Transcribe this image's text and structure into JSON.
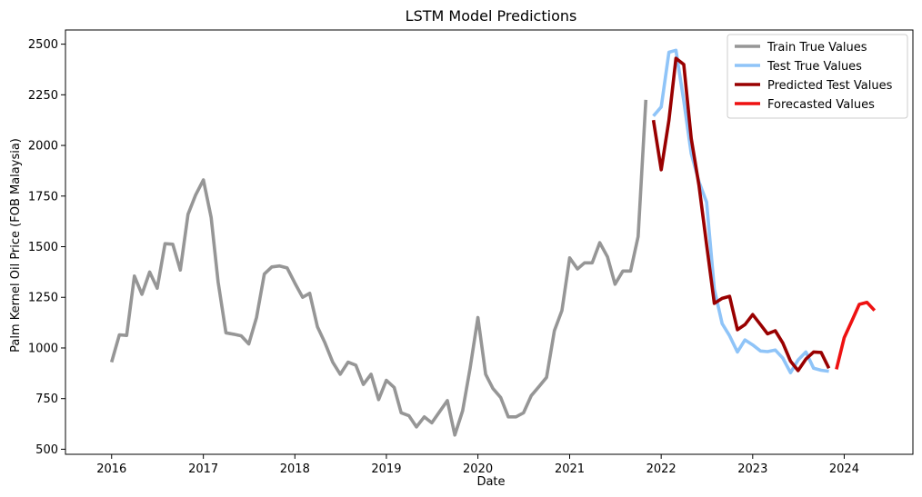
{
  "chart_data": {
    "type": "line",
    "title": "LSTM Model Predictions",
    "xlabel": "Date",
    "ylabel": "Palm Kernel Oil Price (FOB Malaysia)",
    "xlim": [
      "2015-07-01",
      "2024-10-01"
    ],
    "ylim": [
      475,
      2570
    ],
    "x_ticks": [
      "2016-01-01",
      "2017-01-01",
      "2018-01-01",
      "2019-01-01",
      "2020-01-01",
      "2021-01-01",
      "2022-01-01",
      "2023-01-01",
      "2024-01-01"
    ],
    "x_tick_labels": [
      "2016",
      "2017",
      "2018",
      "2019",
      "2020",
      "2021",
      "2022",
      "2023",
      "2024"
    ],
    "y_ticks": [
      500,
      750,
      1000,
      1250,
      1500,
      1750,
      2000,
      2250,
      2500
    ],
    "y_tick_labels": [
      "500",
      "750",
      "1000",
      "1250",
      "1500",
      "1750",
      "2000",
      "2250",
      "2500"
    ],
    "legend_position": "top-right",
    "grid": false,
    "series": [
      {
        "name": "Train True Values",
        "color": "#969696",
        "points": [
          [
            "2016-01-01",
            930
          ],
          [
            "2016-02-01",
            1065
          ],
          [
            "2016-03-01",
            1062
          ],
          [
            "2016-04-01",
            1355
          ],
          [
            "2016-05-01",
            1265
          ],
          [
            "2016-06-01",
            1375
          ],
          [
            "2016-07-01",
            1295
          ],
          [
            "2016-08-01",
            1515
          ],
          [
            "2016-09-01",
            1512
          ],
          [
            "2016-10-01",
            1385
          ],
          [
            "2016-11-01",
            1660
          ],
          [
            "2016-12-01",
            1755
          ],
          [
            "2017-01-01",
            1830
          ],
          [
            "2017-02-01",
            1645
          ],
          [
            "2017-03-01",
            1325
          ],
          [
            "2017-04-01",
            1075
          ],
          [
            "2017-05-01",
            1068
          ],
          [
            "2017-06-01",
            1060
          ],
          [
            "2017-07-01",
            1020
          ],
          [
            "2017-08-01",
            1150
          ],
          [
            "2017-09-01",
            1365
          ],
          [
            "2017-10-01",
            1400
          ],
          [
            "2017-11-01",
            1405
          ],
          [
            "2017-12-01",
            1395
          ],
          [
            "2018-01-01",
            1320
          ],
          [
            "2018-02-01",
            1250
          ],
          [
            "2018-03-01",
            1270
          ],
          [
            "2018-04-01",
            1105
          ],
          [
            "2018-05-01",
            1025
          ],
          [
            "2018-06-01",
            930
          ],
          [
            "2018-07-01",
            870
          ],
          [
            "2018-08-01",
            930
          ],
          [
            "2018-09-01",
            915
          ],
          [
            "2018-10-01",
            820
          ],
          [
            "2018-11-01",
            870
          ],
          [
            "2018-12-01",
            745
          ],
          [
            "2019-01-01",
            840
          ],
          [
            "2019-02-01",
            805
          ],
          [
            "2019-03-01",
            680
          ],
          [
            "2019-04-01",
            665
          ],
          [
            "2019-05-01",
            610
          ],
          [
            "2019-06-01",
            660
          ],
          [
            "2019-07-01",
            630
          ],
          [
            "2019-08-01",
            685
          ],
          [
            "2019-09-01",
            740
          ],
          [
            "2019-10-01",
            570
          ],
          [
            "2019-11-01",
            690
          ],
          [
            "2019-12-01",
            900
          ],
          [
            "2020-01-01",
            1150
          ],
          [
            "2020-02-01",
            870
          ],
          [
            "2020-03-01",
            800
          ],
          [
            "2020-04-01",
            755
          ],
          [
            "2020-05-01",
            660
          ],
          [
            "2020-06-01",
            660
          ],
          [
            "2020-07-01",
            680
          ],
          [
            "2020-08-01",
            765
          ],
          [
            "2020-09-01",
            810
          ],
          [
            "2020-10-01",
            855
          ],
          [
            "2020-11-01",
            1085
          ],
          [
            "2020-12-01",
            1185
          ],
          [
            "2021-01-01",
            1445
          ],
          [
            "2021-02-01",
            1390
          ],
          [
            "2021-03-01",
            1420
          ],
          [
            "2021-04-01",
            1420
          ],
          [
            "2021-05-01",
            1520
          ],
          [
            "2021-06-01",
            1450
          ],
          [
            "2021-07-01",
            1315
          ],
          [
            "2021-08-01",
            1380
          ],
          [
            "2021-09-01",
            1380
          ],
          [
            "2021-10-01",
            1550
          ],
          [
            "2021-11-01",
            2225
          ]
        ]
      },
      {
        "name": "Test True Values",
        "color": "#8fc4f8",
        "points": [
          [
            "2021-12-01",
            2145
          ],
          [
            "2022-01-01",
            2190
          ],
          [
            "2022-02-01",
            2460
          ],
          [
            "2022-03-01",
            2470
          ],
          [
            "2022-04-01",
            2220
          ],
          [
            "2022-05-01",
            1960
          ],
          [
            "2022-06-01",
            1820
          ],
          [
            "2022-07-01",
            1720
          ],
          [
            "2022-08-01",
            1290
          ],
          [
            "2022-09-01",
            1120
          ],
          [
            "2022-10-01",
            1060
          ],
          [
            "2022-11-01",
            980
          ],
          [
            "2022-12-01",
            1040
          ],
          [
            "2023-01-01",
            1015
          ],
          [
            "2023-02-01",
            985
          ],
          [
            "2023-03-01",
            982
          ],
          [
            "2023-04-01",
            990
          ],
          [
            "2023-05-01",
            950
          ],
          [
            "2023-06-01",
            878
          ],
          [
            "2023-07-01",
            940
          ],
          [
            "2023-08-01",
            980
          ],
          [
            "2023-09-01",
            900
          ],
          [
            "2023-10-01",
            890
          ],
          [
            "2023-11-01",
            885
          ]
        ]
      },
      {
        "name": "Predicted Test Values",
        "color": "#990000",
        "points": [
          [
            "2021-12-01",
            2125
          ],
          [
            "2022-01-01",
            1880
          ],
          [
            "2022-02-01",
            2125
          ],
          [
            "2022-03-01",
            2430
          ],
          [
            "2022-04-01",
            2400
          ],
          [
            "2022-05-01",
            2035
          ],
          [
            "2022-06-01",
            1800
          ],
          [
            "2022-07-01",
            1510
          ],
          [
            "2022-08-01",
            1220
          ],
          [
            "2022-09-01",
            1245
          ],
          [
            "2022-10-01",
            1255
          ],
          [
            "2022-11-01",
            1090
          ],
          [
            "2022-12-01",
            1115
          ],
          [
            "2023-01-01",
            1165
          ],
          [
            "2023-02-01",
            1115
          ],
          [
            "2023-03-01",
            1070
          ],
          [
            "2023-04-01",
            1085
          ],
          [
            "2023-05-01",
            1025
          ],
          [
            "2023-06-01",
            935
          ],
          [
            "2023-07-01",
            888
          ],
          [
            "2023-08-01",
            945
          ],
          [
            "2023-09-01",
            980
          ],
          [
            "2023-10-01",
            978
          ],
          [
            "2023-11-01",
            900
          ]
        ]
      },
      {
        "name": "Forecasted Values",
        "color": "#ee1111",
        "points": [
          [
            "2023-12-01",
            895
          ],
          [
            "2024-01-01",
            1050
          ],
          [
            "2024-02-01",
            1135
          ],
          [
            "2024-03-01",
            1215
          ],
          [
            "2024-04-01",
            1225
          ],
          [
            "2024-05-01",
            1185
          ]
        ]
      }
    ]
  }
}
